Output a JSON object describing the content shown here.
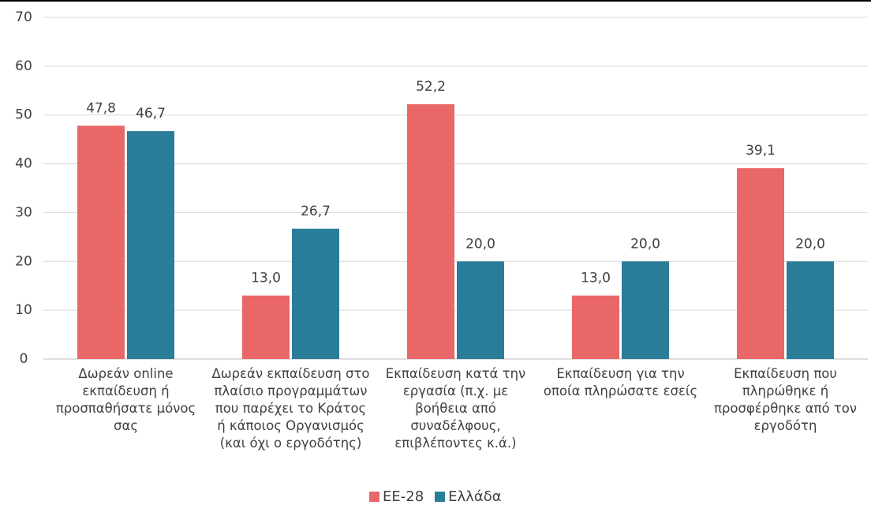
{
  "chart_data": {
    "type": "bar",
    "categories": [
      "Δωρεάν online εκπαίδευση ή προσπαθήσατε μόνος σας",
      "Δωρεάν εκπαίδευση στο πλαίσιο προγραμμάτων που παρέχει το Κράτος ή κάποιος Οργανισμός (και όχι ο εργοδότης)",
      "Εκπαίδευση κατά την εργασία (π.χ. με βοήθεια από συναδέλφους, επιβλέποντες κ.ά.)",
      "Εκπαίδευση για την οποία πληρώσατε εσείς",
      "Εκπαίδευση που πληρώθηκε ή προσφέρθηκε από τον εργοδότη"
    ],
    "series": [
      {
        "name": "ΕΕ-28",
        "color": "#e96767",
        "values": [
          47.8,
          13.0,
          52.2,
          13.0,
          39.1
        ],
        "value_labels": [
          "47,8",
          "13,0",
          "52,2",
          "13,0",
          "39,1"
        ]
      },
      {
        "name": "Ελλάδα",
        "color": "#2a7d99",
        "values": [
          46.7,
          26.7,
          20.0,
          20.0,
          20.0
        ],
        "value_labels": [
          "46,7",
          "26,7",
          "20,0",
          "20,0",
          "20,0"
        ]
      }
    ],
    "ylim": [
      0,
      70
    ],
    "yticks": [
      0,
      10,
      20,
      30,
      40,
      50,
      60,
      70
    ],
    "grid": true,
    "legend": "bottom"
  }
}
